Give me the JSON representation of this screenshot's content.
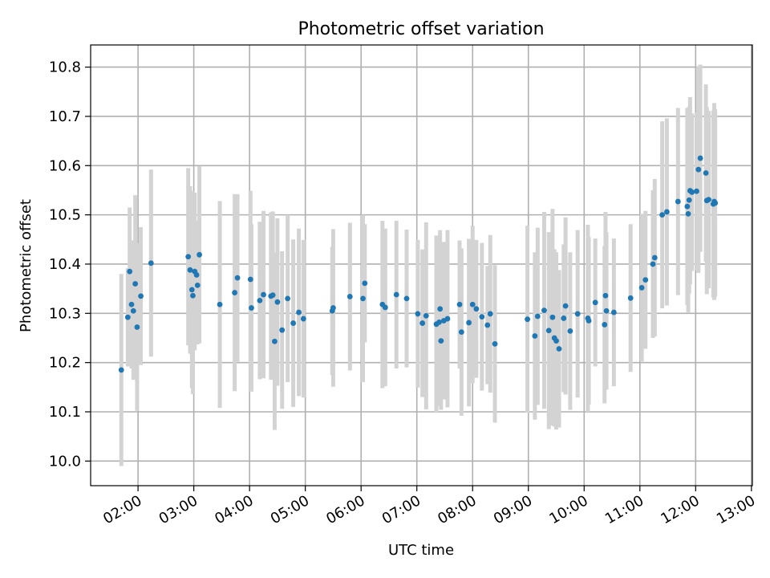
{
  "chart_data": {
    "type": "scatter",
    "title": "Photometric offset variation",
    "xlabel": "UTC time",
    "ylabel": "Photometric offset",
    "x_unit": "UTC time (HH:MM)",
    "xlim": [
      "01:09",
      "13:01"
    ],
    "ylim": [
      9.95,
      10.845
    ],
    "x_ticks": [
      "02:00",
      "03:00",
      "04:00",
      "05:00",
      "06:00",
      "07:00",
      "08:00",
      "09:00",
      "10:00",
      "11:00",
      "12:00",
      "13:00"
    ],
    "y_ticks": [
      10.0,
      10.1,
      10.2,
      10.3,
      10.4,
      10.5,
      10.6,
      10.7,
      10.8
    ],
    "grid": true,
    "legend": "none",
    "marker_color": "#1f77b4",
    "errorbar_color": "#d3d3d3",
    "series": [
      {
        "x": [
          "01:42",
          "01:49",
          "01:51",
          "01:53",
          "01:55",
          "01:57",
          "01:59",
          "02:03",
          "02:14",
          "02:54",
          "02:56",
          "02:58",
          "02:59",
          "03:01",
          "03:03",
          "03:04",
          "03:06",
          "03:28",
          "03:44",
          "03:47",
          "04:01",
          "04:02",
          "04:11",
          "04:15",
          "04:23",
          "04:25",
          "04:27",
          "04:30",
          "04:35",
          "04:41",
          "04:47",
          "04:53",
          "04:58",
          "05:29",
          "05:30",
          "05:48",
          "06:02",
          "06:04",
          "06:23",
          "06:26",
          "06:38",
          "06:49",
          "07:01",
          "07:06",
          "07:10",
          "07:21",
          "07:24",
          "07:25",
          "07:26",
          "07:29",
          "07:33",
          "07:46",
          "07:48",
          "07:56",
          "08:00",
          "08:04",
          "08:10",
          "08:16",
          "08:19",
          "08:24",
          "08:59",
          "09:07",
          "09:10",
          "09:17",
          "09:22",
          "09:26",
          "09:28",
          "09:30",
          "09:33",
          "09:38",
          "09:40",
          "09:45",
          "09:53",
          "10:04",
          "10:05",
          "10:12",
          "10:22",
          "10:23",
          "10:24",
          "10:32",
          "10:50",
          "11:02",
          "11:06",
          "11:14",
          "11:16",
          "11:24",
          "11:29",
          "11:41",
          "11:51",
          "11:52",
          "11:53",
          "11:54",
          "11:56",
          "12:01",
          "12:03",
          "12:05",
          "12:11",
          "12:12",
          "12:14",
          "12:19",
          "12:20",
          "12:21"
        ],
        "y": [
          10.185,
          10.292,
          10.385,
          10.318,
          10.305,
          10.36,
          10.272,
          10.335,
          10.402,
          10.415,
          10.388,
          10.348,
          10.336,
          10.385,
          10.378,
          10.357,
          10.419,
          10.318,
          10.342,
          10.372,
          10.369,
          10.311,
          10.326,
          10.338,
          10.335,
          10.337,
          10.243,
          10.323,
          10.266,
          10.33,
          10.28,
          10.302,
          10.289,
          10.305,
          10.311,
          10.334,
          10.33,
          10.361,
          10.318,
          10.312,
          10.338,
          10.33,
          10.299,
          10.28,
          10.295,
          10.278,
          10.282,
          10.309,
          10.244,
          10.285,
          10.289,
          10.318,
          10.262,
          10.281,
          10.318,
          10.309,
          10.293,
          10.276,
          10.299,
          10.238,
          10.288,
          10.254,
          10.294,
          10.306,
          10.265,
          10.292,
          10.25,
          10.244,
          10.228,
          10.29,
          10.315,
          10.264,
          10.299,
          10.29,
          10.285,
          10.322,
          10.277,
          10.336,
          10.305,
          10.302,
          10.331,
          10.352,
          10.368,
          10.4,
          10.413,
          10.5,
          10.506,
          10.527,
          10.517,
          10.502,
          10.53,
          10.549,
          10.546,
          10.548,
          10.592,
          10.615,
          10.585,
          10.529,
          10.531,
          10.522,
          10.527,
          10.524
        ],
        "err": [
          0.195,
          0.1,
          0.13,
          0.13,
          0.14,
          0.18,
          0.17,
          0.14,
          0.19,
          0.18,
          0.17,
          0.2,
          0.2,
          0.16,
          0.11,
          0.12,
          0.18,
          0.21,
          0.2,
          0.17,
          0.18,
          0.17,
          0.16,
          0.17,
          0.17,
          0.17,
          0.18,
          0.17,
          0.16,
          0.17,
          0.17,
          0.17,
          0.16,
          0.13,
          0.16,
          0.15,
          0.17,
          0.12,
          0.17,
          0.16,
          0.15,
          0.14,
          0.15,
          0.15,
          0.19,
          0.18,
          0.17,
          0.16,
          0.14,
          0.16,
          0.18,
          0.13,
          0.17,
          0.17,
          0.16,
          0.14,
          0.15,
          0.12,
          0.16,
          0.16,
          0.19,
          0.17,
          0.18,
          0.2,
          0.2,
          0.22,
          0.18,
          0.18,
          0.16,
          0.15,
          0.18,
          0.16,
          0.17,
          0.19,
          0.17,
          0.13,
          0.16,
          0.17,
          0.16,
          0.15,
          0.15,
          0.15,
          0.14,
          0.15,
          0.16,
          0.19,
          0.19,
          0.19,
          0.2,
          0.2,
          0.19,
          0.19,
          0.16,
          0.16,
          0.21,
          0.19,
          0.18,
          0.19,
          0.18,
          0.19,
          0.2,
          0.19
        ]
      }
    ]
  }
}
